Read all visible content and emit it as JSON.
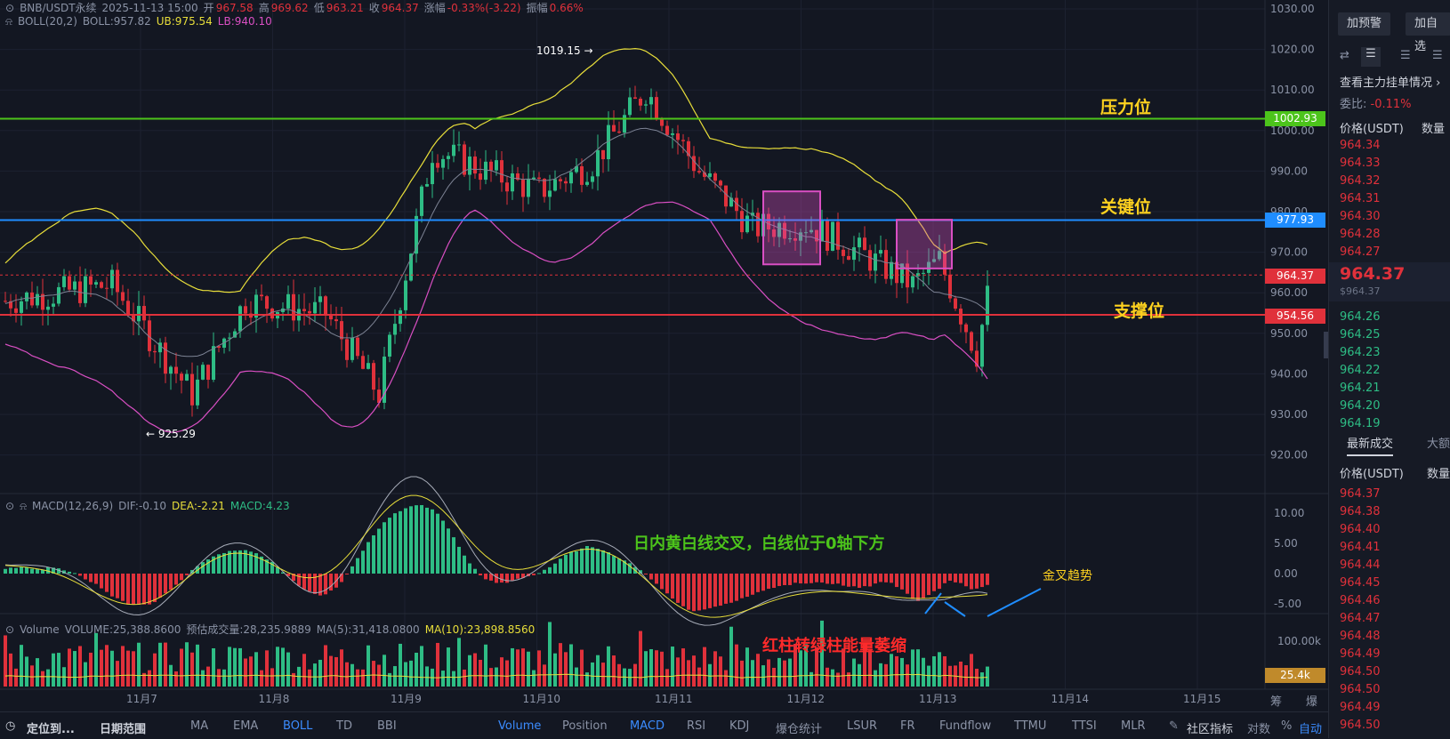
{
  "header": {
    "symbol": "BNB/USDT永续",
    "datetime": "2025-11-13 15:00",
    "open_label": "开",
    "open": "967.58",
    "high_label": "高",
    "high": "969.62",
    "low_label": "低",
    "low": "963.21",
    "close_label": "收",
    "close": "964.37",
    "change_label": "涨幅",
    "change": "-0.33%(-3.22)",
    "amp_label": "振幅",
    "amp": "0.66%"
  },
  "boll": {
    "name": "BOLL(20,2)",
    "mid": "BOLL:957.82",
    "ub": "UB:975.54",
    "lb": "LB:940.10"
  },
  "macd": {
    "name": "MACD(12,26,9)",
    "dif": "DIF:-0.10",
    "dea": "DEA:-2.21",
    "macd": "MACD:4.23"
  },
  "volume": {
    "name": "Volume",
    "vol": "VOLUME:25,388.8600",
    "est": "预估成交量:28,235.9889",
    "ma5": "MA(5):31,418.0800",
    "ma10": "MA(10):23,898.8560",
    "last_tag": "25.4k",
    "axis_top": "100.00k"
  },
  "annotations": {
    "resist": "压力位",
    "key": "关键位",
    "support": "支撑位",
    "macd_note": "日内黄白线交叉，白线位于0轴下方",
    "golden": "金叉趋势",
    "vol_note": "红柱转绿柱能量萎缩",
    "high_mark": "1019.15 →",
    "low_mark": "← 925.29"
  },
  "levels": {
    "resist_tag": "1002.93",
    "key_tag": "977.93",
    "current_tag": "964.37",
    "support_tag": "954.56"
  },
  "price_axis": [
    "1030.00",
    "1020.00",
    "1010.00",
    "1000.00",
    "990.00",
    "980.00",
    "970.00",
    "960.00",
    "950.00",
    "940.00",
    "930.00",
    "920.00"
  ],
  "macd_axis": [
    "10.00",
    "5.00",
    "0.00",
    "-5.00"
  ],
  "date_axis": [
    "11月7",
    "11月8",
    "11月9",
    "11月10",
    "11月11",
    "11月12",
    "11月13",
    "11月14",
    "11月15"
  ],
  "bottom_left": {
    "locate": "定位到...",
    "range": "日期范围"
  },
  "indicators_main": [
    "MA",
    "EMA",
    "BOLL",
    "TD",
    "BBI"
  ],
  "indicators_sub": [
    "Volume",
    "Position",
    "MACD",
    "RSI",
    "KDJ",
    "爆仓统计",
    "LSUR",
    "FR",
    "Fundflow",
    "TTMU",
    "TTSI",
    "MLR"
  ],
  "bottom_right": {
    "community": "社区指标",
    "log": "对数",
    "pct": "%",
    "auto": "自动",
    "chips": "筹",
    "burst": "爆"
  },
  "sidebar": {
    "alert_btn": "加预警",
    "watch_btn": "加自选",
    "order_link": "查看主力挂单情况",
    "ratio_label": "委比:",
    "ratio": "-0.11%",
    "price_header": "价格(USDT)",
    "qty_header": "数量",
    "asks": [
      "964.34",
      "964.33",
      "964.32",
      "964.31",
      "964.30",
      "964.28",
      "964.27"
    ],
    "last_price": "964.37",
    "last_price_sub": "$964.37",
    "bids": [
      "964.26",
      "964.25",
      "964.23",
      "964.22",
      "964.21",
      "964.20",
      "964.19"
    ],
    "trades_tab": "最新成交",
    "big_tab": "大额",
    "trades_price_header": "价格(USDT)",
    "trades_qty_header": "数量",
    "trades": [
      "964.37",
      "964.38",
      "964.40",
      "964.41",
      "964.44",
      "964.45",
      "964.46",
      "964.47",
      "964.48",
      "964.49",
      "964.50",
      "964.50",
      "964.49",
      "964.50"
    ]
  },
  "colors": {
    "up": "#2ebd85",
    "down": "#e0313b",
    "boll_upper": "#e8de3a",
    "boll_lower": "#d94fc3",
    "resist": "#4cc41b",
    "key": "#1f8dff",
    "support": "#e0313b"
  }
}
